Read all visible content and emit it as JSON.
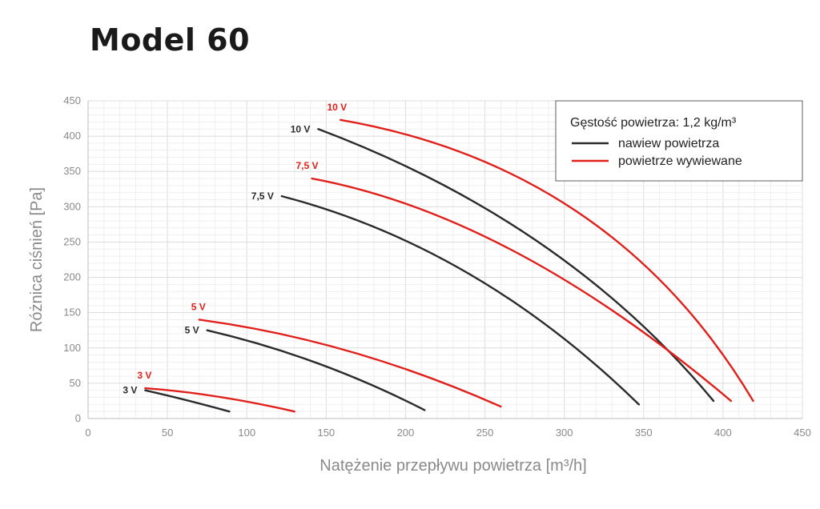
{
  "chart_data": {
    "type": "line",
    "title": "Model 60",
    "xlabel": "Natężenie przepływu powietrza [m³/h]",
    "ylabel": "Różnica ciśnień [Pa]",
    "xlim": [
      0,
      450
    ],
    "ylim": [
      0,
      450
    ],
    "x_ticks": [
      0,
      50,
      100,
      150,
      200,
      250,
      300,
      350,
      400,
      450
    ],
    "y_ticks": [
      0,
      50,
      100,
      150,
      200,
      250,
      300,
      350,
      400,
      450
    ],
    "grid": true,
    "legend": {
      "placement": "top-right",
      "title": "Gęstość powietrza: 1,2 kg/m³",
      "entries": [
        {
          "label": "nawiew powietrza",
          "color": "#2b2b2b"
        },
        {
          "label": "powietrze wywiewane",
          "color": "#e0201b"
        }
      ]
    },
    "series": [
      {
        "name": "nawiew powietrza 3 V",
        "group": "nawiew powietrza",
        "voltage_label": "3 V",
        "color": "#2b2b2b",
        "x": [
          36,
          62,
          89
        ],
        "y": [
          40,
          26,
          10
        ]
      },
      {
        "name": "nawiew powietrza 5 V",
        "group": "nawiew powietrza",
        "voltage_label": "5 V",
        "color": "#2b2b2b",
        "x": [
          75,
          145,
          212
        ],
        "y": [
          125,
          78,
          12
        ]
      },
      {
        "name": "nawiew powietrza 7,5 V",
        "group": "nawiew powietrza",
        "voltage_label": "7,5 V",
        "color": "#2b2b2b",
        "x": [
          122,
          240,
          347
        ],
        "y": [
          315,
          205,
          20
        ]
      },
      {
        "name": "nawiew powietrza 10 V",
        "group": "nawiew powietrza",
        "voltage_label": "10 V",
        "color": "#2b2b2b",
        "x": [
          145,
          285,
          394
        ],
        "y": [
          410,
          248,
          25
        ]
      },
      {
        "name": "powietrze wywiewane 3 V",
        "group": "powietrze wywiewane",
        "voltage_label": "3 V",
        "color": "#e0201b",
        "x": [
          36,
          82,
          130
        ],
        "y": [
          43,
          31,
          10
        ]
      },
      {
        "name": "powietrze wywiewane 5 V",
        "group": "powietrze wywiewane",
        "voltage_label": "5 V",
        "color": "#e0201b",
        "x": [
          70,
          165,
          260
        ],
        "y": [
          140,
          95,
          17
        ]
      },
      {
        "name": "powietrze wywiewane 7,5 V",
        "group": "powietrze wywiewane",
        "voltage_label": "7,5 V",
        "color": "#e0201b",
        "x": [
          141,
          270,
          405
        ],
        "y": [
          340,
          235,
          25
        ]
      },
      {
        "name": "powietrze wywiewane 10 V",
        "group": "powietrze wywiewane",
        "voltage_label": "10 V",
        "color": "#e0201b",
        "x": [
          159,
          310,
          419
        ],
        "y": [
          423,
          290,
          25
        ]
      }
    ]
  }
}
